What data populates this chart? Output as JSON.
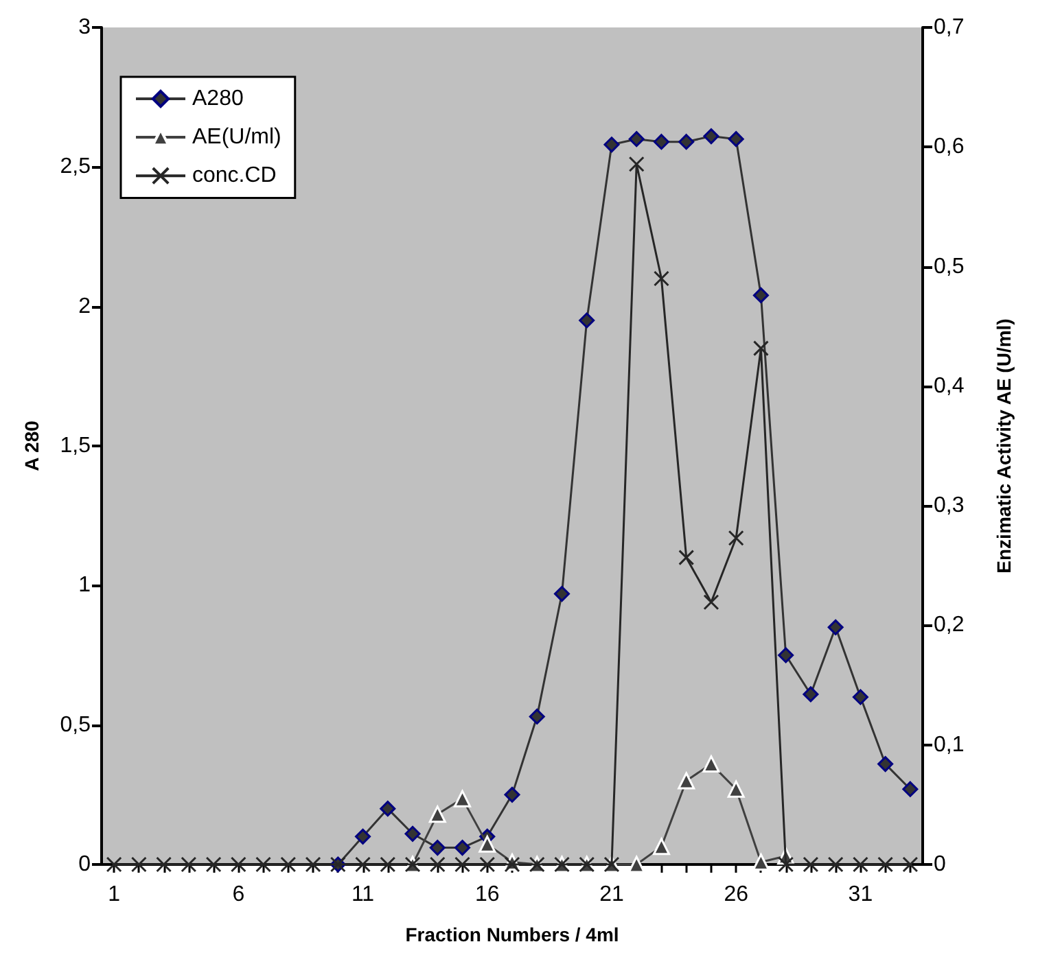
{
  "chart_data": {
    "type": "line",
    "xlabel": "Fraction Numbers / 4ml",
    "ylabel": "A 280",
    "y2label": "Enzimatic Activity AE (U/ml)",
    "x": [
      1,
      2,
      3,
      4,
      5,
      6,
      7,
      8,
      9,
      10,
      11,
      12,
      13,
      14,
      15,
      16,
      17,
      18,
      19,
      20,
      21,
      22,
      23,
      24,
      25,
      26,
      27,
      28,
      29,
      30,
      31,
      32,
      33
    ],
    "xlim": [
      0.5,
      33.5
    ],
    "xticks": [
      1,
      {
        "value": 2,
        "label": null
      },
      {
        "value": 3,
        "label": null
      },
      {
        "value": 4,
        "label": null
      },
      {
        "value": 5,
        "label": null
      },
      6,
      {
        "value": 7,
        "label": null
      },
      {
        "value": 8,
        "label": null
      },
      {
        "value": 9,
        "label": null
      },
      {
        "value": 10,
        "label": null
      },
      11,
      {
        "value": 12,
        "label": null
      },
      {
        "value": 13,
        "label": null
      },
      {
        "value": 14,
        "label": null
      },
      {
        "value": 15,
        "label": null
      },
      16,
      {
        "value": 17,
        "label": null
      },
      {
        "value": 18,
        "label": null
      },
      {
        "value": 19,
        "label": null
      },
      {
        "value": 20,
        "label": null
      },
      21,
      {
        "value": 22,
        "label": null
      },
      {
        "value": 23,
        "label": null
      },
      {
        "value": 24,
        "label": null
      },
      {
        "value": 25,
        "label": null
      },
      26,
      {
        "value": 27,
        "label": null
      },
      {
        "value": 28,
        "label": null
      },
      {
        "value": 29,
        "label": null
      },
      {
        "value": 30,
        "label": null
      },
      31,
      {
        "value": 32,
        "label": null
      },
      {
        "value": 33,
        "label": null
      }
    ],
    "series": [
      {
        "name": "A280",
        "color": "#333333",
        "marker": "diamond",
        "values": [
          null,
          null,
          null,
          null,
          null,
          null,
          null,
          null,
          null,
          0,
          0.1,
          0.2,
          0.11,
          0.06,
          0.06,
          0.1,
          0.25,
          0.53,
          0.97,
          1.95,
          2.58,
          2.6,
          2.59,
          2.59,
          2.61,
          2.6,
          2.04,
          0.75,
          0.61,
          0.85,
          0.6,
          0.36,
          0.27
        ]
      },
      {
        "name": "AE(U/ml)",
        "color": "#404040",
        "marker": "triangle",
        "axis": "y2",
        "values": [
          null,
          null,
          null,
          null,
          null,
          null,
          null,
          null,
          null,
          null,
          null,
          null,
          0,
          0.042,
          0.055,
          0.017,
          0.002,
          0,
          0,
          0,
          0,
          0,
          0.015,
          0.07,
          0.084,
          0.063,
          0.002,
          0.007,
          null,
          null,
          null,
          null,
          null
        ]
      },
      {
        "name": "conc.CD",
        "color": "#262626",
        "marker": "cross",
        "values": [
          0,
          0,
          0,
          0,
          0,
          0,
          0,
          0,
          0,
          0,
          0,
          0,
          0,
          0,
          0,
          0,
          0,
          0,
          0,
          0,
          0,
          2.51,
          2.1,
          1.1,
          0.94,
          1.17,
          1.85,
          0,
          0,
          0,
          0,
          0,
          0
        ]
      }
    ],
    "ylim": [
      0,
      3
    ],
    "yticks": [
      0,
      {
        "value": 0.5,
        "label": "0,5"
      },
      1,
      {
        "value": 1.5,
        "label": "1,5"
      },
      2,
      {
        "value": 2.5,
        "label": "2,5"
      },
      3
    ],
    "y2lim": [
      0,
      0.7
    ],
    "y2ticks": [
      0,
      {
        "value": 0.1,
        "label": "0,1"
      },
      {
        "value": 0.2,
        "label": "0,2"
      },
      {
        "value": 0.3,
        "label": "0,3"
      },
      {
        "value": 0.4,
        "label": "0,4"
      },
      {
        "value": 0.5,
        "label": "0,5"
      },
      {
        "value": 0.6,
        "label": "0,6"
      },
      {
        "value": 0.7,
        "label": "0,7"
      }
    ],
    "grid": false,
    "legend": "top left"
  }
}
